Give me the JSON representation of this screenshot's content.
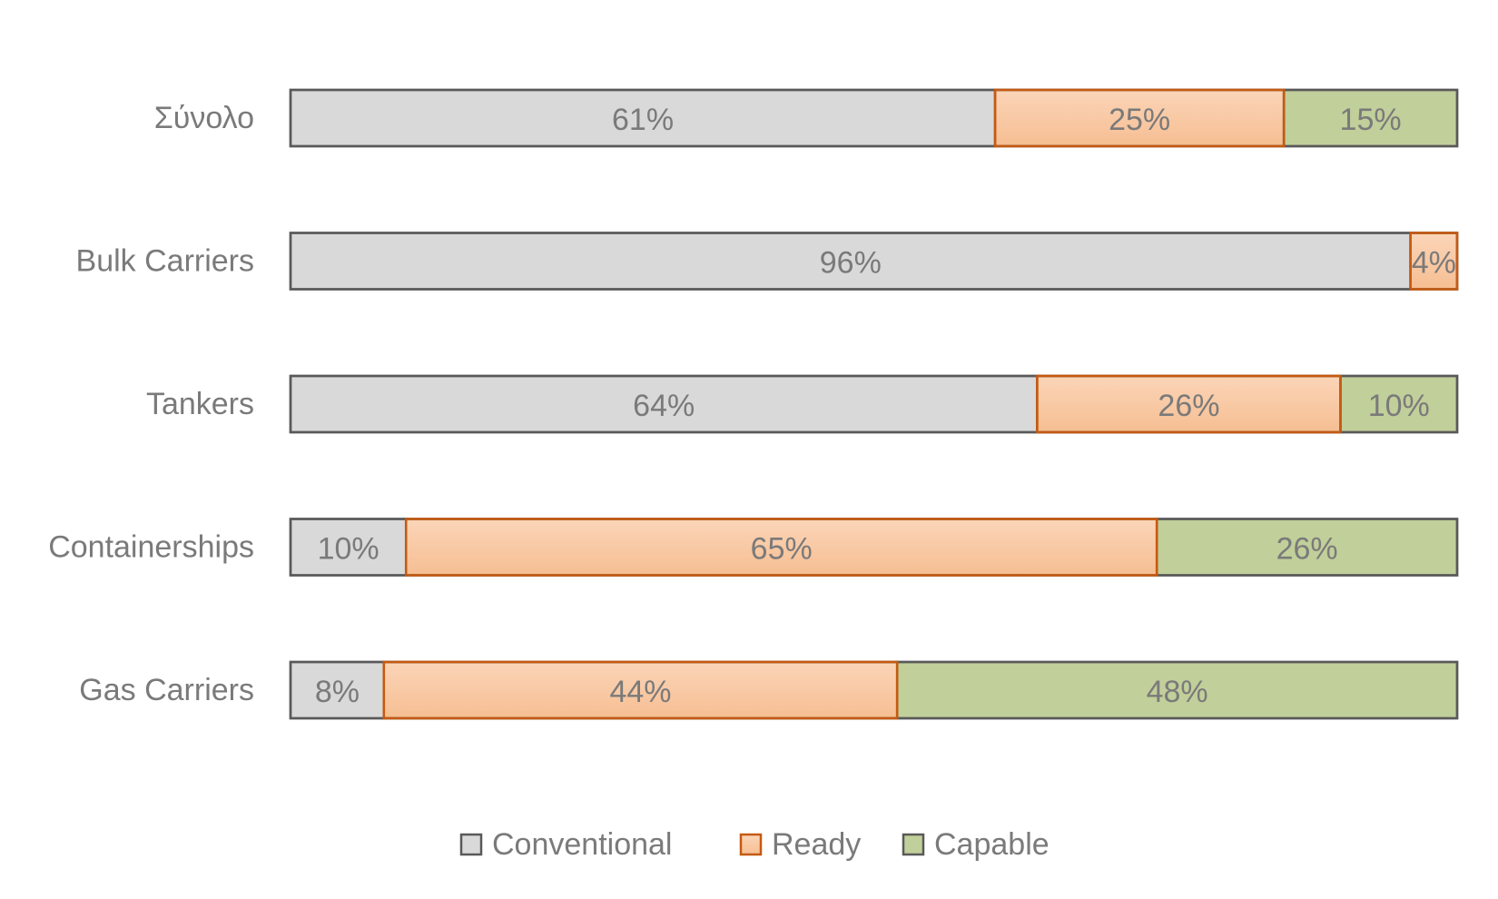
{
  "chart_data": {
    "type": "bar",
    "orientation": "horizontal",
    "stacked": true,
    "percent": true,
    "categories": [
      "Σύνολο",
      "Bulk Carriers",
      "Tankers",
      "Containerships",
      "Gas Carriers"
    ],
    "series": [
      {
        "name": "Conventional",
        "values": [
          61,
          96,
          64,
          10,
          8
        ],
        "labels": [
          "61%",
          "96%",
          "64%",
          "10%",
          "8%"
        ],
        "fill": "#d9d9d9",
        "stroke": "#595959"
      },
      {
        "name": "Ready",
        "values": [
          25,
          4,
          26,
          65,
          44
        ],
        "labels": [
          "25%",
          "4%",
          "26%",
          "65%",
          "44%"
        ],
        "fill": "#f8cbad",
        "stroke": "#c55a11"
      },
      {
        "name": "Capable",
        "values": [
          15,
          0,
          10,
          26,
          48
        ],
        "labels": [
          "15%",
          "",
          "10%",
          "26%",
          "48%"
        ],
        "fill": "#c1cf9a",
        "stroke": "#595959"
      }
    ],
    "xlim": [
      0,
      100
    ],
    "grid": false,
    "legend_position": "bottom",
    "title": "",
    "xlabel": "",
    "ylabel": ""
  }
}
